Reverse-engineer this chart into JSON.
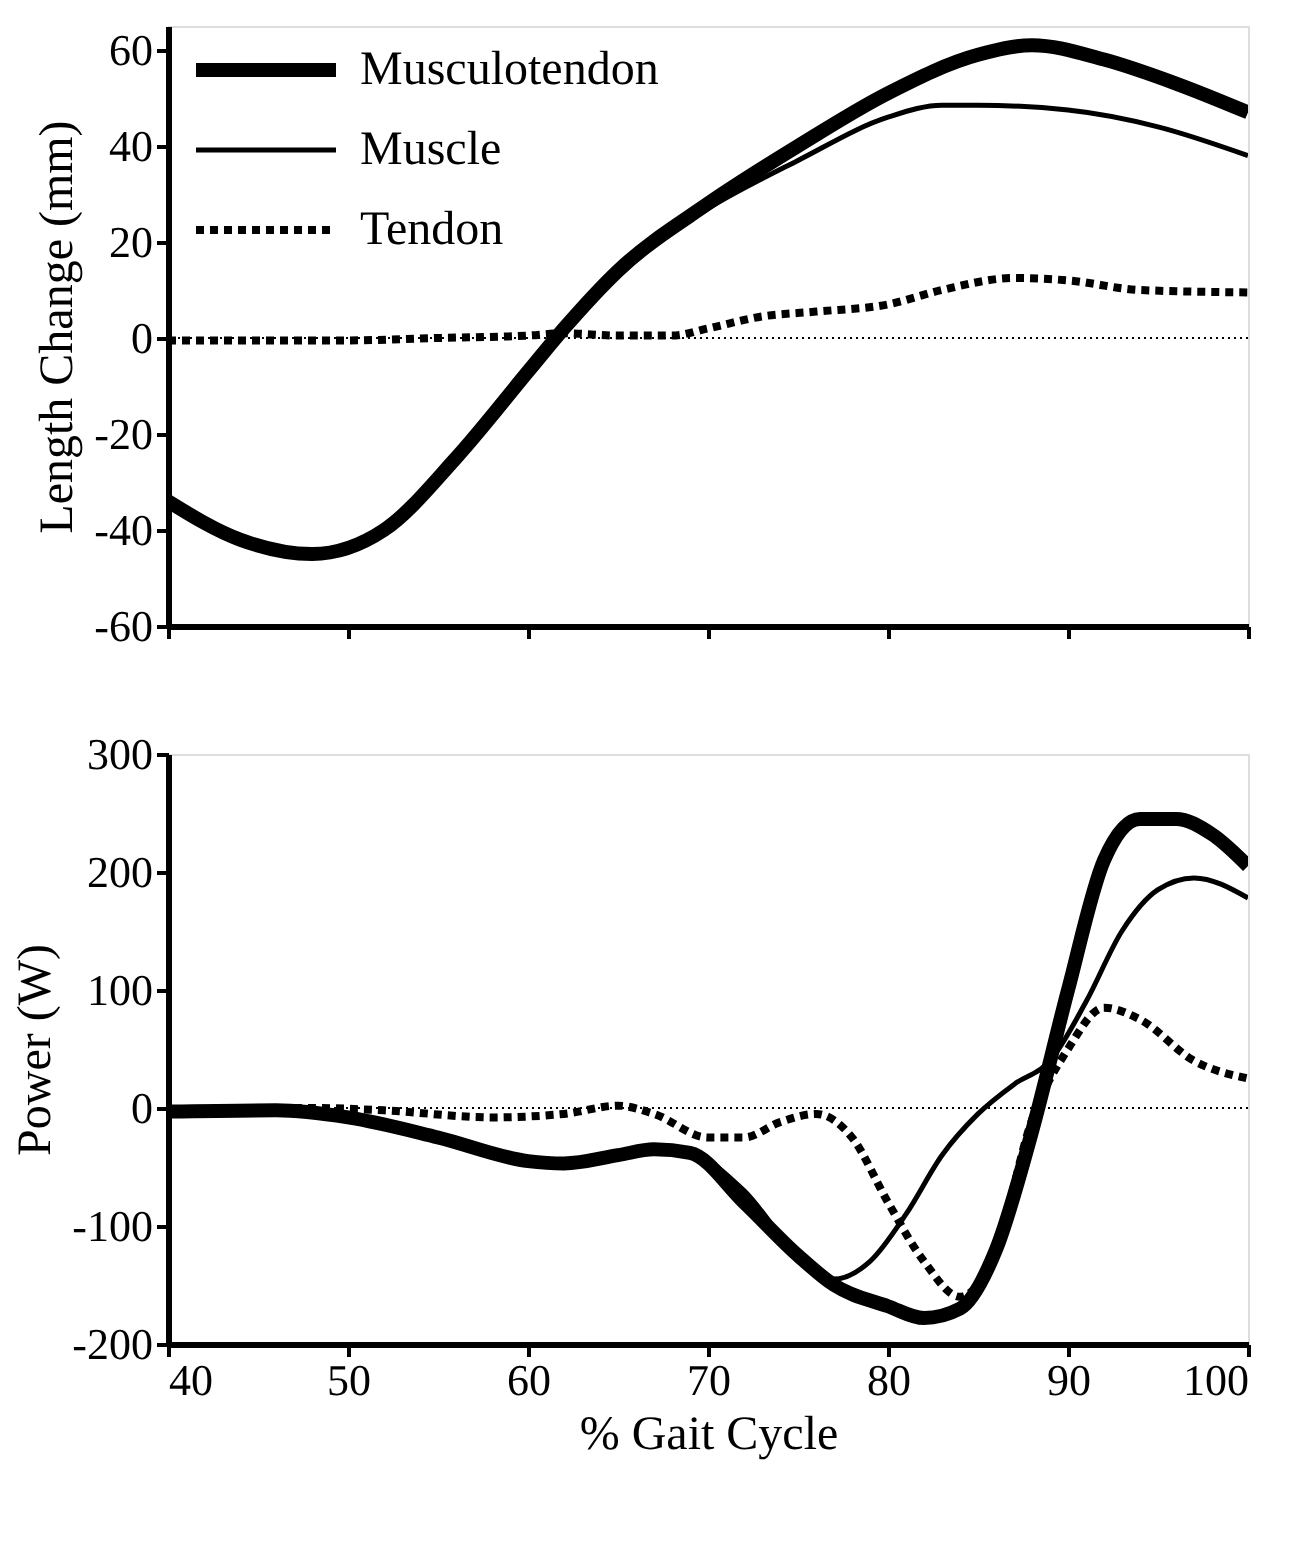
{
  "chart_data": [
    {
      "type": "line",
      "ylabel": "Length Change (mm)",
      "xlim": [
        40,
        100
      ],
      "xticks": [
        40,
        50,
        60,
        70,
        80,
        90,
        100
      ],
      "ylim": [
        -60,
        65
      ],
      "yticks": [
        -60,
        -40,
        -20,
        0,
        20,
        40,
        60
      ],
      "tick_labels": "y",
      "grid": false,
      "legend": "top left",
      "ref_lines": [
        {
          "axis": "y",
          "value": 0,
          "line_style": "dotted",
          "color": "#000000"
        }
      ],
      "series": [
        {
          "name": "Musculotendon",
          "color": "#000000",
          "line_style": "solid",
          "x": [
            40,
            44,
            48,
            52,
            56,
            60,
            62,
            65,
            70,
            75,
            80,
            85,
            88,
            92,
            96,
            100
          ],
          "values": [
            -34,
            -42,
            -45,
            -40,
            -25,
            -7,
            2,
            14,
            28,
            40,
            51,
            59,
            61,
            58,
            53,
            47
          ]
        },
        {
          "name": "Muscle",
          "color": "#000000",
          "line_style": "solid",
          "x": [
            40,
            44,
            48,
            52,
            56,
            60,
            62,
            65,
            70,
            75,
            80,
            83,
            85,
            90,
            95,
            100
          ],
          "values": [
            -34,
            -42,
            -45,
            -40,
            -25,
            -7,
            2,
            14,
            27,
            37,
            46,
            48.5,
            48.5,
            47.5,
            44,
            38
          ]
        },
        {
          "name": "Tendon",
          "color": "#000000",
          "line_style": "dotted",
          "x": [
            40,
            50,
            55,
            60,
            62,
            65,
            68,
            70,
            73,
            76,
            80,
            83,
            87,
            90,
            94,
            100
          ],
          "values": [
            -0.5,
            -0.5,
            0,
            0.5,
            1,
            0.5,
            0.5,
            2,
            4.5,
            5.5,
            7,
            10,
            12.5,
            12,
            10,
            9.5
          ]
        }
      ]
    },
    {
      "type": "line",
      "ylabel": "Power (W)",
      "xlabel": "% Gait Cycle",
      "xlim": [
        40,
        100
      ],
      "xticks": [
        40,
        50,
        60,
        70,
        80,
        90,
        100
      ],
      "ylim": [
        -200,
        300
      ],
      "yticks": [
        -200,
        -100,
        0,
        100,
        200,
        300
      ],
      "grid": false,
      "ref_lines": [
        {
          "axis": "y",
          "value": 0,
          "line_style": "dotted",
          "color": "#000000"
        }
      ],
      "series": [
        {
          "color": "#000000",
          "line_style": "solid",
          "x": [
            40,
            46,
            50,
            55,
            60,
            62,
            65,
            67,
            69,
            72,
            75,
            77,
            80,
            82,
            84,
            86,
            88,
            90,
            92,
            94,
            96,
            98,
            100
          ],
          "values": [
            -3,
            -2,
            -8,
            -25,
            -45,
            -47,
            -40,
            -35,
            -38,
            -80,
            -125,
            -150,
            -168,
            -178,
            -170,
            -120,
            -20,
            100,
            210,
            245,
            245,
            232,
            205
          ]
        },
        {
          "color": "#000000",
          "line_style": "solid",
          "x": [
            40,
            46,
            50,
            55,
            60,
            62,
            65,
            67,
            69,
            72,
            75,
            77,
            79,
            81,
            83,
            85,
            87,
            89,
            91,
            93,
            95,
            97,
            100
          ],
          "values": [
            -3,
            -2,
            -8,
            -25,
            -45,
            -47,
            -40,
            -35,
            -38,
            -70,
            -125,
            -145,
            -130,
            -90,
            -40,
            -5,
            20,
            40,
            90,
            150,
            185,
            195,
            178
          ]
        },
        {
          "color": "#000000",
          "line_style": "dotted",
          "x": [
            40,
            48,
            52,
            58,
            62,
            65,
            67,
            70,
            72,
            74,
            76,
            78,
            80,
            82,
            84,
            86,
            88,
            90,
            92,
            94,
            97,
            100
          ],
          "values": [
            -3,
            0,
            -2,
            -8,
            -5,
            2,
            -5,
            -25,
            -25,
            -12,
            -5,
            -25,
            -80,
            -130,
            -160,
            -120,
            -10,
            50,
            85,
            75,
            40,
            25
          ]
        }
      ]
    }
  ]
}
